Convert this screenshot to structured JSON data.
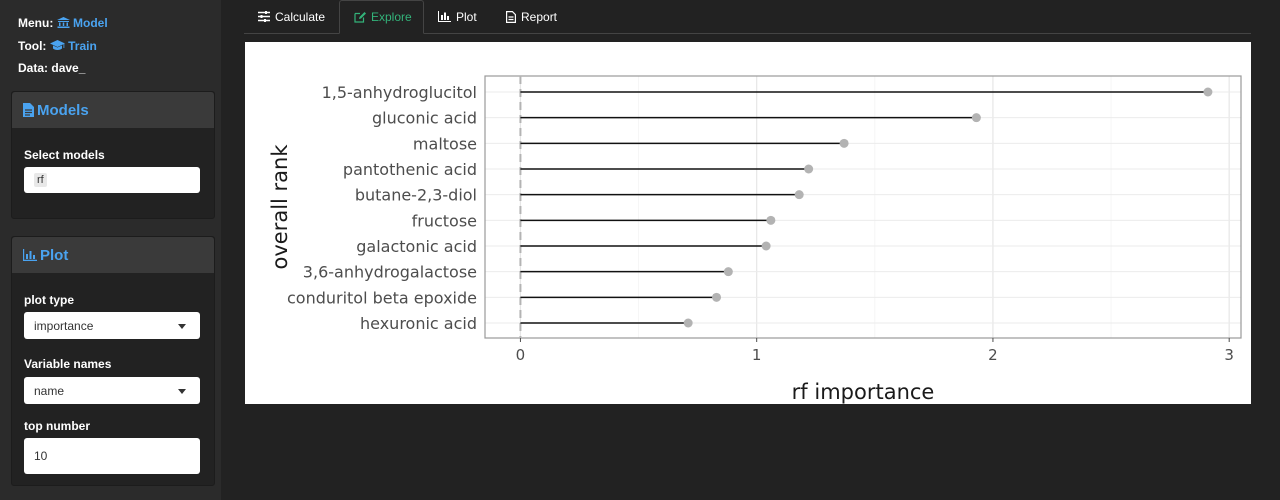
{
  "sidebar": {
    "menu": {
      "label": "Menu:",
      "value": "Model"
    },
    "tool": {
      "label": "Tool:",
      "value": "Train"
    },
    "data": {
      "label": "Data:",
      "value": "dave_"
    },
    "models_panel": {
      "title": "Models",
      "select_label": "Select models",
      "selected_chip": "rf"
    },
    "plot_panel": {
      "title": "Plot",
      "plot_type_label": "plot type",
      "plot_type_value": "importance",
      "variable_names_label": "Variable names",
      "variable_names_value": "name",
      "top_number_label": "top number",
      "top_number_value": "10"
    }
  },
  "tabs": [
    {
      "label": "Calculate",
      "icon": "sliders-icon"
    },
    {
      "label": "Explore",
      "icon": "edit-icon",
      "active": true
    },
    {
      "label": "Plot",
      "icon": "bar-chart-icon"
    },
    {
      "label": "Report",
      "icon": "file-icon"
    }
  ],
  "colors": {
    "accent_blue": "#4aa3f0",
    "active_tab_green": "#33b37a",
    "point_gray": "#b3b3b3"
  },
  "chart_data": {
    "type": "lollipop",
    "xlabel": "rf importance",
    "ylabel": "overall rank",
    "xlim": [
      -0.15,
      3.05
    ],
    "xticks": [
      0,
      1,
      2,
      3
    ],
    "grid": true,
    "reference_line_x": 0,
    "categories": [
      "1,5-anhydroglucitol",
      "gluconic acid",
      "maltose",
      "pantothenic acid",
      "butane-2,3-diol",
      "fructose",
      "galactonic acid",
      "3,6-anhydrogalactose",
      "conduritol beta epoxide",
      "hexuronic acid"
    ],
    "values": [
      2.91,
      1.93,
      1.37,
      1.22,
      1.18,
      1.06,
      1.04,
      0.88,
      0.83,
      0.71
    ]
  }
}
